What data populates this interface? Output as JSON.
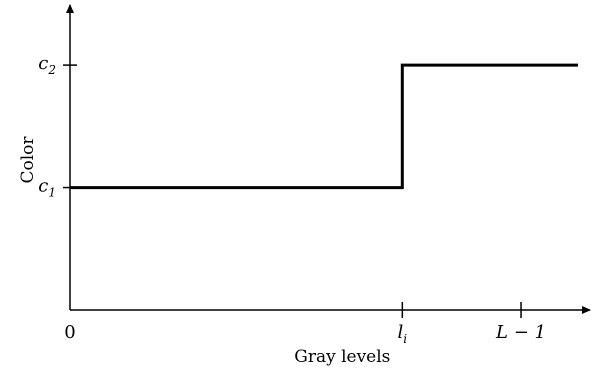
{
  "chart_data": {
    "type": "line",
    "title": "",
    "xlabel": "Gray levels",
    "ylabel": "Color",
    "x_ticks": [
      {
        "value": 0,
        "label": "0",
        "show_tick": false
      },
      {
        "value": 0.7,
        "label": "l",
        "sub": "i",
        "show_tick": true
      },
      {
        "value": 0.95,
        "label": "L − 1",
        "show_tick": true
      }
    ],
    "y_ticks": [
      {
        "value": 1,
        "label": "c",
        "sub": "1"
      },
      {
        "value": 2,
        "label": "c",
        "sub": "2"
      }
    ],
    "xlim": [
      0,
      1.07
    ],
    "ylim": [
      0,
      2.45
    ],
    "grid": false,
    "legend": "none",
    "series": [
      {
        "x": [
          0,
          0.7,
          0.7,
          1.07
        ],
        "y": [
          1,
          1,
          2,
          2
        ],
        "color": "#000000"
      }
    ]
  }
}
